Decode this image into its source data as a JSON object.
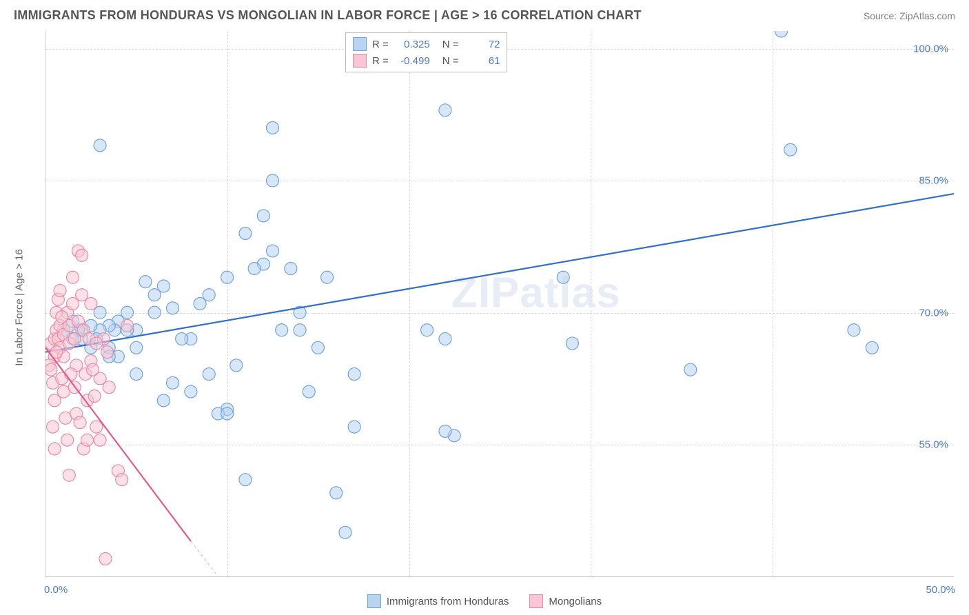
{
  "header": {
    "title": "IMMIGRANTS FROM HONDURAS VS MONGOLIAN IN LABOR FORCE | AGE > 16 CORRELATION CHART",
    "source": "Source: ZipAtlas.com"
  },
  "axes": {
    "y_label": "In Labor Force | Age > 16",
    "x_min": 0.0,
    "x_max": 50.0,
    "y_min": 40.0,
    "y_max": 102.0,
    "y_ticks": [
      55.0,
      70.0,
      85.0,
      100.0
    ],
    "y_tick_labels": [
      "55.0%",
      "70.0%",
      "85.0%",
      "100.0%"
    ],
    "x_ticks": [
      0,
      10,
      20,
      30,
      40,
      50
    ],
    "x_tick_label_left": "0.0%",
    "x_tick_label_right": "50.0%",
    "axis_tick_color": "#4a7ac8",
    "grid_color": "#d8d8d8",
    "axis_line_color": "#cccccc",
    "background_color": "#ffffff"
  },
  "legend_top": {
    "rows": [
      {
        "color_fill": "#b8d4f0",
        "color_stroke": "#6ea3de",
        "r_label": "R =",
        "r_val": "0.325",
        "n_label": "N =",
        "n_val": "72"
      },
      {
        "color_fill": "#f8c6d4",
        "color_stroke": "#e88aa6",
        "r_label": "R =",
        "r_val": "-0.499",
        "n_label": "N =",
        "n_val": "61"
      }
    ]
  },
  "legend_bottom": {
    "items": [
      {
        "color_fill": "#b8d4f0",
        "color_stroke": "#6ea3de",
        "label": "Immigrants from Honduras"
      },
      {
        "color_fill": "#f8c6d4",
        "color_stroke": "#e88aa6",
        "label": "Mongolians"
      }
    ]
  },
  "watermark": "ZIPatlas",
  "chart": {
    "type": "scatter",
    "marker_radius": 9,
    "marker_opacity": 0.55,
    "marker_stroke_width": 1.2,
    "series": [
      {
        "name": "Immigrants from Honduras",
        "fill": "#b8d4f0",
        "stroke": "#6ea3de",
        "trend_color": "#2f6fd0",
        "trend_width": 2.2,
        "trend_x1": 0.0,
        "trend_y1": 65.5,
        "trend_x2": 50.0,
        "trend_y2": 83.5,
        "points": [
          [
            40.5,
            102.0
          ],
          [
            41.0,
            88.5
          ],
          [
            22.0,
            93.0
          ],
          [
            12.5,
            91.0
          ],
          [
            12.0,
            81.0
          ],
          [
            12.5,
            85.0
          ],
          [
            12.0,
            75.5
          ],
          [
            11.5,
            75.0
          ],
          [
            10.0,
            74.0
          ],
          [
            10.0,
            59.0
          ],
          [
            9.5,
            58.5
          ],
          [
            10.0,
            58.5
          ],
          [
            9.0,
            72.0
          ],
          [
            8.5,
            71.0
          ],
          [
            8.0,
            67.0
          ],
          [
            7.5,
            67.0
          ],
          [
            7.0,
            70.5
          ],
          [
            7.0,
            62.0
          ],
          [
            6.5,
            73.0
          ],
          [
            6.0,
            70.0
          ],
          [
            6.0,
            72.0
          ],
          [
            5.5,
            73.5
          ],
          [
            5.0,
            68.0
          ],
          [
            5.0,
            66.0
          ],
          [
            4.5,
            70.0
          ],
          [
            4.5,
            68.0
          ],
          [
            4.0,
            65.0
          ],
          [
            4.0,
            69.0
          ],
          [
            3.8,
            68.0
          ],
          [
            3.5,
            68.5
          ],
          [
            3.5,
            66.0
          ],
          [
            3.0,
            70.0
          ],
          [
            3.0,
            68.0
          ],
          [
            2.8,
            67.0
          ],
          [
            2.5,
            68.5
          ],
          [
            2.5,
            66.0
          ],
          [
            2.0,
            68.0
          ],
          [
            2.0,
            67.0
          ],
          [
            1.8,
            68.0
          ],
          [
            1.5,
            69.0
          ],
          [
            1.5,
            67.0
          ],
          [
            1.0,
            68.0
          ],
          [
            13.5,
            75.0
          ],
          [
            15.5,
            74.0
          ],
          [
            14.0,
            68.0
          ],
          [
            17.0,
            63.0
          ],
          [
            14.5,
            61.0
          ],
          [
            17.0,
            57.0
          ],
          [
            21.0,
            68.0
          ],
          [
            22.0,
            67.0
          ],
          [
            3.0,
            89.0
          ],
          [
            11.0,
            51.0
          ],
          [
            22.5,
            56.0
          ],
          [
            16.0,
            49.5
          ],
          [
            16.5,
            45.0
          ],
          [
            28.5,
            74.0
          ],
          [
            29.0,
            66.5
          ],
          [
            22.0,
            56.5
          ],
          [
            6.5,
            60.0
          ],
          [
            9.0,
            63.0
          ],
          [
            10.5,
            64.0
          ],
          [
            8.0,
            61.0
          ],
          [
            13.0,
            68.0
          ],
          [
            14.0,
            70.0
          ],
          [
            15.0,
            66.0
          ],
          [
            44.5,
            68.0
          ],
          [
            45.5,
            66.0
          ],
          [
            35.5,
            63.5
          ],
          [
            11.0,
            79.0
          ],
          [
            12.5,
            77.0
          ],
          [
            3.5,
            65.0
          ],
          [
            5.0,
            63.0
          ]
        ]
      },
      {
        "name": "Mongolians",
        "fill": "#f8c6d4",
        "stroke": "#e88aa6",
        "trend_color": "#e65a8a",
        "trend_width": 2.2,
        "trend_x1": 0.0,
        "trend_y1": 66.0,
        "trend_x2": 8.0,
        "trend_y2": 44.0,
        "trend_dash_x2": 11.0,
        "trend_dash_y2": 36.0,
        "points": [
          [
            0.3,
            66.5
          ],
          [
            0.5,
            67.0
          ],
          [
            0.5,
            65.0
          ],
          [
            0.6,
            68.0
          ],
          [
            0.7,
            67.0
          ],
          [
            0.8,
            68.5
          ],
          [
            0.8,
            66.0
          ],
          [
            1.0,
            67.5
          ],
          [
            1.0,
            65.0
          ],
          [
            1.2,
            70.0
          ],
          [
            1.3,
            68.5
          ],
          [
            1.3,
            66.5
          ],
          [
            1.5,
            74.0
          ],
          [
            1.5,
            71.0
          ],
          [
            1.6,
            67.0
          ],
          [
            1.7,
            64.0
          ],
          [
            1.8,
            69.0
          ],
          [
            1.8,
            77.0
          ],
          [
            2.0,
            76.5
          ],
          [
            2.0,
            72.0
          ],
          [
            2.1,
            68.0
          ],
          [
            2.2,
            63.0
          ],
          [
            2.3,
            60.0
          ],
          [
            2.4,
            67.0
          ],
          [
            2.5,
            71.0
          ],
          [
            2.5,
            64.5
          ],
          [
            2.7,
            60.5
          ],
          [
            2.8,
            57.0
          ],
          [
            3.0,
            55.5
          ],
          [
            3.0,
            62.5
          ],
          [
            3.2,
            67.0
          ],
          [
            3.4,
            65.5
          ],
          [
            0.2,
            64.0
          ],
          [
            0.3,
            63.5
          ],
          [
            0.4,
            62.0
          ],
          [
            0.5,
            60.0
          ],
          [
            0.6,
            70.0
          ],
          [
            0.7,
            71.5
          ],
          [
            0.8,
            72.5
          ],
          [
            0.9,
            62.5
          ],
          [
            1.0,
            61.0
          ],
          [
            1.1,
            58.0
          ],
          [
            1.2,
            55.5
          ],
          [
            1.3,
            51.5
          ],
          [
            1.4,
            63.0
          ],
          [
            1.6,
            61.5
          ],
          [
            1.7,
            58.5
          ],
          [
            1.9,
            57.5
          ],
          [
            2.1,
            54.5
          ],
          [
            2.3,
            55.5
          ],
          [
            2.6,
            63.5
          ],
          [
            2.8,
            66.5
          ],
          [
            3.5,
            61.5
          ],
          [
            4.0,
            52.0
          ],
          [
            4.2,
            51.0
          ],
          [
            4.5,
            68.5
          ],
          [
            3.3,
            42.0
          ],
          [
            0.4,
            57.0
          ],
          [
            0.5,
            54.5
          ],
          [
            0.6,
            65.5
          ],
          [
            0.9,
            69.5
          ]
        ]
      }
    ]
  }
}
